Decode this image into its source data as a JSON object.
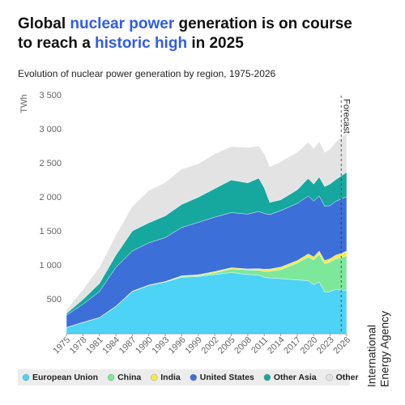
{
  "chart_data": {
    "type": "stacked_area",
    "title_lines": [
      [
        {
          "text": "Global ",
          "color": "#111111"
        },
        {
          "text": "nuclear power",
          "color": "#2f5ce8"
        },
        {
          "text": " generation is on course",
          "color": "#111111"
        }
      ],
      [
        {
          "text": "to reach a ",
          "color": "#111111"
        },
        {
          "text": "historic high",
          "color": "#2f5ce8"
        },
        {
          "text": " in 2025",
          "color": "#111111"
        }
      ]
    ],
    "subtitle": "Evolution of nuclear power generation by region, 1975-2026",
    "y_label": "TWh",
    "source_lines": [
      "International",
      "Energy Agency"
    ],
    "source_color": "#2f5ce8",
    "forecast_x": 2025,
    "forecast_label": "Forecast",
    "x": [
      1975,
      1978,
      1981,
      1984,
      1987,
      1990,
      1993,
      1996,
      1999,
      2002,
      2005,
      2008,
      2010,
      2011,
      2012,
      2014,
      2017,
      2019,
      2020,
      2021,
      2022,
      2023,
      2024,
      2025,
      2026
    ],
    "series": [
      {
        "name": "European Union",
        "color": "#4dd3f5",
        "values": [
          90,
          165,
          235,
          400,
          620,
          710,
          760,
          830,
          840,
          870,
          900,
          870,
          860,
          830,
          820,
          810,
          790,
          780,
          720,
          760,
          610,
          620,
          650,
          640,
          640
        ]
      },
      {
        "name": "China",
        "color": "#7ee89a",
        "values": [
          0,
          0,
          0,
          0,
          0,
          0,
          2,
          14,
          15,
          25,
          53,
          68,
          74,
          86,
          98,
          133,
          248,
          348,
          366,
          408,
          418,
          435,
          450,
          480,
          510
        ]
      },
      {
        "name": "India",
        "color": "#f3ea4c",
        "values": [
          2,
          3,
          3,
          5,
          6,
          6,
          6,
          8,
          12,
          19,
          17,
          15,
          23,
          32,
          33,
          36,
          37,
          45,
          43,
          47,
          46,
          48,
          55,
          60,
          65
        ]
      },
      {
        "name": "United States",
        "color": "#3c6fd8",
        "values": [
          180,
          265,
          380,
          570,
          590,
          620,
          645,
          710,
          770,
          800,
          810,
          805,
          840,
          820,
          800,
          830,
          840,
          850,
          820,
          810,
          800,
          780,
          790,
          800,
          800
        ]
      },
      {
        "name": "Other Asia",
        "color": "#16a89f",
        "values": [
          25,
          70,
          120,
          180,
          295,
          295,
          320,
          340,
          370,
          420,
          480,
          460,
          490,
          380,
          180,
          160,
          200,
          260,
          250,
          280,
          290,
          320,
          320,
          340,
          360
        ]
      },
      {
        "name": "Other",
        "color": "#e3e3e3",
        "values": [
          50,
          147,
          235,
          295,
          360,
          475,
          490,
          520,
          490,
          510,
          490,
          520,
          470,
          500,
          520,
          560,
          550,
          530,
          520,
          520,
          500,
          510,
          550,
          560,
          585
        ]
      }
    ],
    "xlim": [
      1975,
      2026
    ],
    "xticks": [
      1975,
      1978,
      1981,
      1984,
      1987,
      1990,
      1993,
      1996,
      1999,
      2002,
      2005,
      2008,
      2011,
      2014,
      2017,
      2020,
      2023,
      2026
    ],
    "ylim": [
      0,
      3500
    ],
    "yticks": [
      500,
      {
        "value": 1000,
        "label": "1 000"
      },
      {
        "value": 1500,
        "label": "1 500"
      },
      {
        "value": 2000,
        "label": "2 000"
      },
      {
        "value": 2500,
        "label": "2 500"
      },
      {
        "value": 3000,
        "label": "3 000"
      },
      {
        "value": 3500,
        "label": "3 500"
      }
    ],
    "grid": false,
    "legend": "bottom"
  }
}
